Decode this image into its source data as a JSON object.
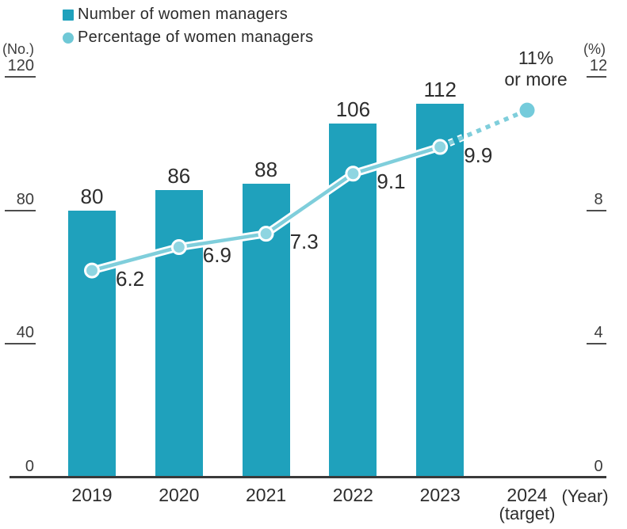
{
  "legend": {
    "items": [
      {
        "label": "Number of women managers",
        "swatch": "square",
        "color": "#1FA1BC"
      },
      {
        "label": "Percentage of women managers",
        "swatch": "circle",
        "color": "#6FC8D6"
      }
    ]
  },
  "axes": {
    "left": {
      "unit": "(No.)",
      "ticks": [
        0,
        40,
        80,
        120
      ],
      "max": 120
    },
    "right": {
      "unit": "(%)",
      "ticks": [
        0,
        4,
        8,
        12
      ],
      "max": 12
    },
    "x": {
      "unit": "(Year)",
      "labels": [
        {
          "line1": "2019",
          "line2": ""
        },
        {
          "line1": "2020",
          "line2": ""
        },
        {
          "line1": "2021",
          "line2": ""
        },
        {
          "line1": "2022",
          "line2": ""
        },
        {
          "line1": "2023",
          "line2": ""
        },
        {
          "line1": "2024",
          "line2": "(target)"
        }
      ]
    }
  },
  "annotation": {
    "lines": [
      "11%",
      "or more"
    ],
    "text": "11% or more"
  },
  "colors": {
    "bar": "#1FA1BC",
    "line": "#7FCEDB",
    "marker_fill": "#8ED5E1",
    "marker_ring": "#FFFFFF",
    "endpoint_dot": "#74CBDB",
    "text": "#2D2D2D",
    "tick": "#4D4D4D"
  },
  "chart_data": {
    "type": "bar+line",
    "categories": [
      "2019",
      "2020",
      "2021",
      "2022",
      "2023",
      "2024 (target)"
    ],
    "series": [
      {
        "name": "Number of women managers",
        "type": "bar",
        "axis": "left",
        "values": [
          80,
          86,
          88,
          106,
          112,
          null
        ]
      },
      {
        "name": "Percentage of women managers",
        "type": "line",
        "axis": "right",
        "values": [
          6.2,
          6.9,
          7.3,
          9.1,
          9.9,
          11
        ],
        "point_labels": [
          "6.2",
          "6.9",
          "7.3",
          "9.1",
          "9.9",
          "11% or more"
        ],
        "last_segment": "dotted-projection"
      }
    ],
    "title": "",
    "xlabel": "(Year)",
    "left_ylabel": "(No.)",
    "right_ylabel": "(%)",
    "left_ylim": [
      0,
      120
    ],
    "right_ylim": [
      0,
      12
    ],
    "grid": false,
    "legend_position": "top-left"
  }
}
